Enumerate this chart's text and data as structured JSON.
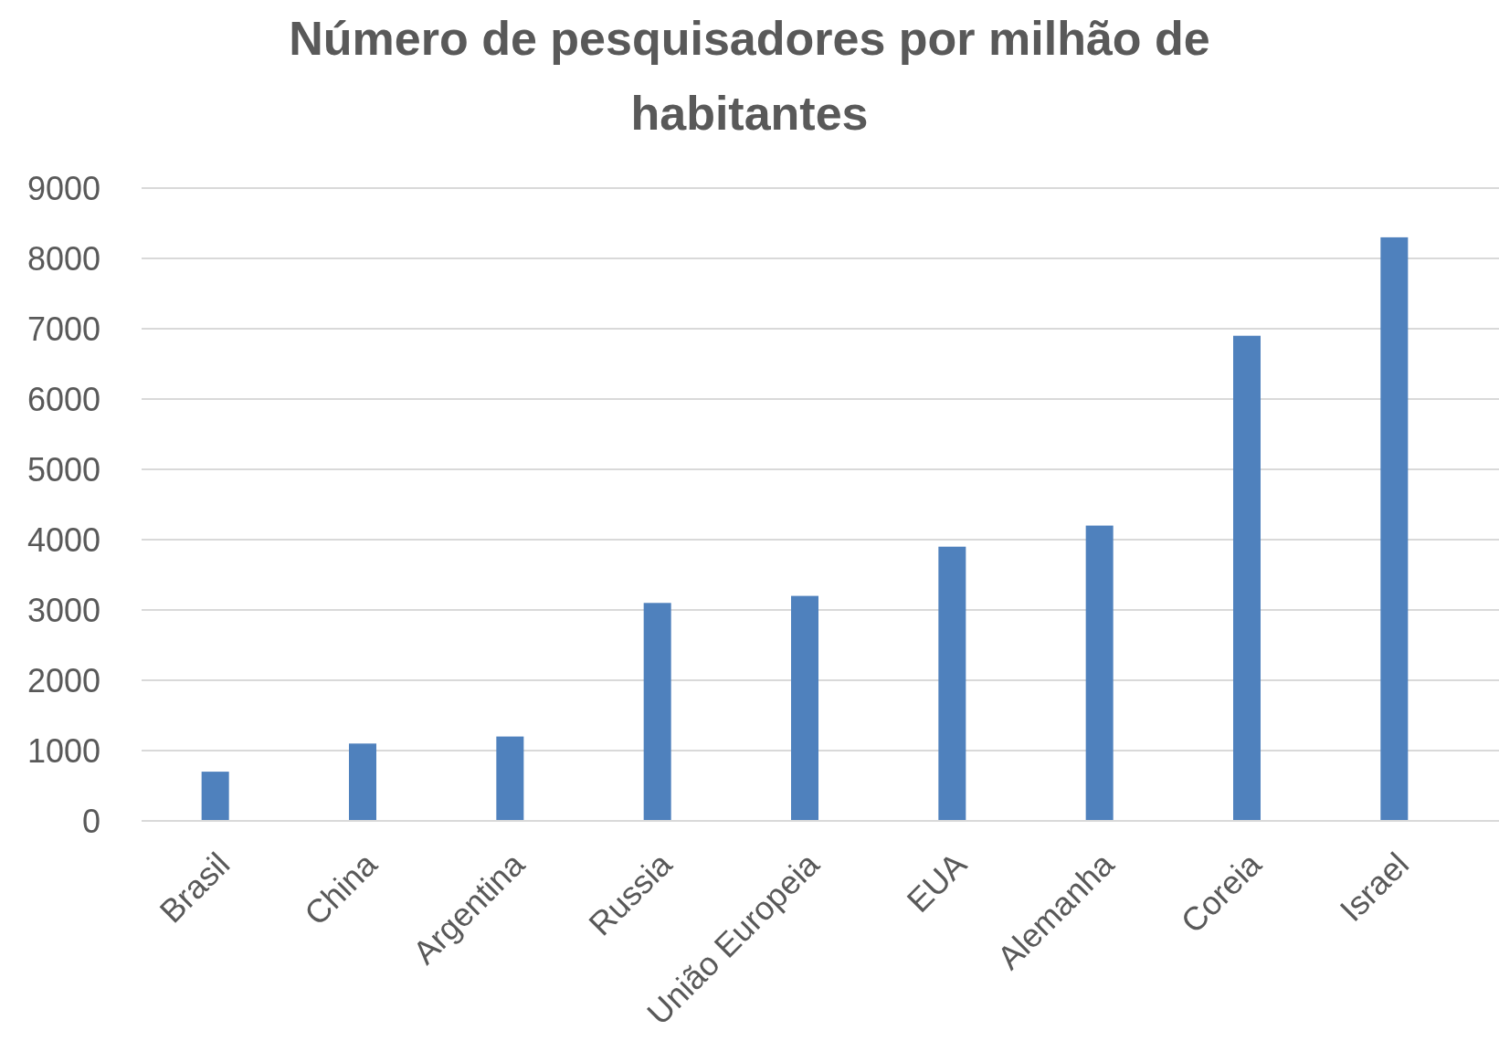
{
  "chart_data": {
    "type": "bar",
    "title": "Número de pesquisadores por milhão de habitantes",
    "categories": [
      "Brasil",
      "China",
      "Argentina",
      "Russia",
      "União Europeia",
      "EUA",
      "Alemanha",
      "Coreia",
      "Israel"
    ],
    "values": [
      700,
      1100,
      1200,
      3100,
      3200,
      3900,
      4200,
      6900,
      8300
    ],
    "color": "#4f81bd",
    "ylim": [
      0,
      9000
    ],
    "yticks": [
      0,
      1000,
      2000,
      3000,
      4000,
      5000,
      6000,
      7000,
      8000,
      9000
    ],
    "grid": "y"
  }
}
